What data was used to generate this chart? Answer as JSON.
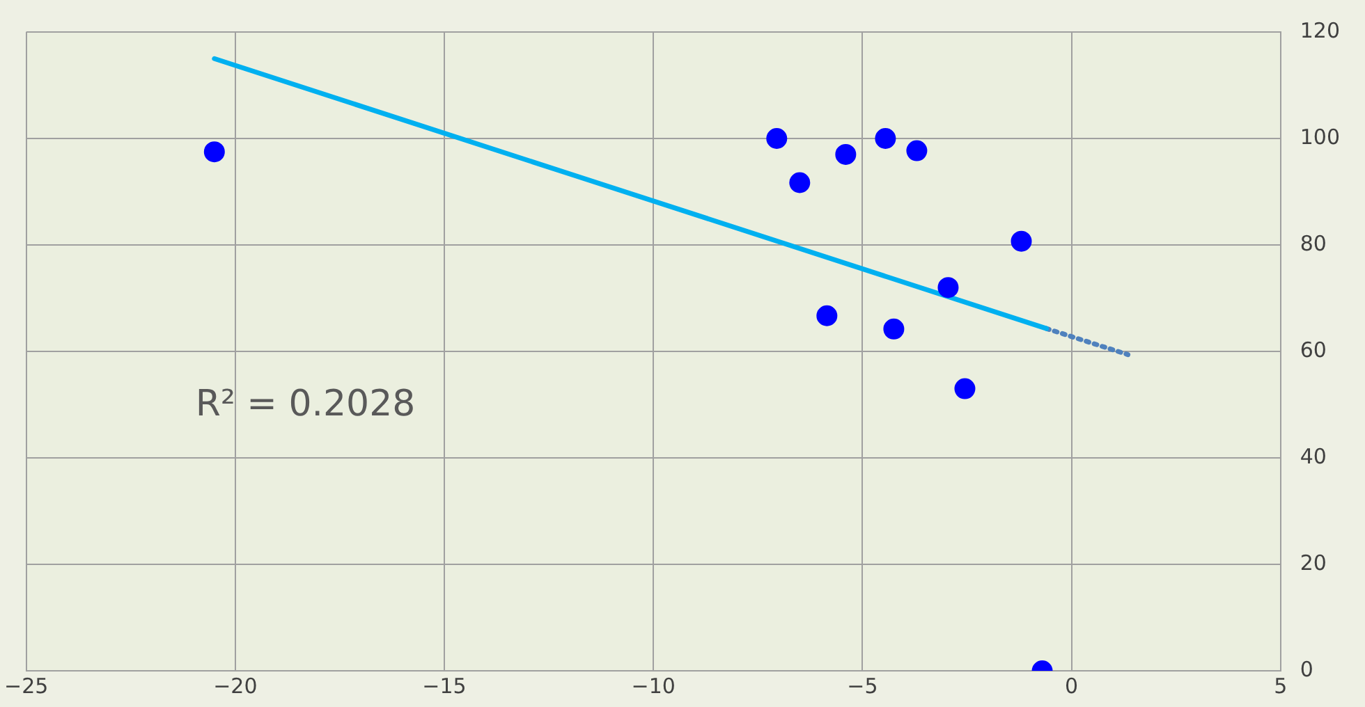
{
  "chart_data": {
    "type": "scatter",
    "xlim": [
      -25,
      5
    ],
    "xticks": [
      {
        "value": -25,
        "label": "−25"
      },
      {
        "value": -20,
        "label": "−20"
      },
      {
        "value": -15,
        "label": "−15"
      },
      {
        "value": -10,
        "label": "−10"
      },
      {
        "value": -5,
        "label": "−5"
      },
      0,
      5
    ],
    "ylim": [
      0,
      120
    ],
    "yticks": [
      0,
      20,
      40,
      60,
      80,
      100,
      120
    ],
    "grid": true,
    "legend": false,
    "annotations": [
      "R² = 0.2028"
    ],
    "series": [
      {
        "type": "scatter",
        "color": "#0000ff",
        "marker": "circle",
        "x": [
          -20.5,
          -7.05,
          -6.5,
          -5.85,
          -5.4,
          -4.45,
          -4.25,
          -3.7,
          -2.95,
          -2.55,
          -1.2,
          -0.7
        ],
        "values": [
          97.5,
          100,
          91.7,
          66.7,
          97,
          100,
          64.2,
          97.7,
          72,
          53,
          80.7,
          0
        ]
      },
      {
        "type": "line",
        "color": "#00b0f0",
        "marker": "none",
        "line_style": "solid",
        "x": [
          -20.5,
          -0.6
        ],
        "values": [
          115,
          64.3
        ]
      },
      {
        "type": "line",
        "color": "#4f81bd",
        "marker": "none",
        "line_style": "dotted",
        "x": [
          -0.6,
          1.35
        ],
        "values": [
          64.3,
          59.4
        ]
      }
    ]
  }
}
